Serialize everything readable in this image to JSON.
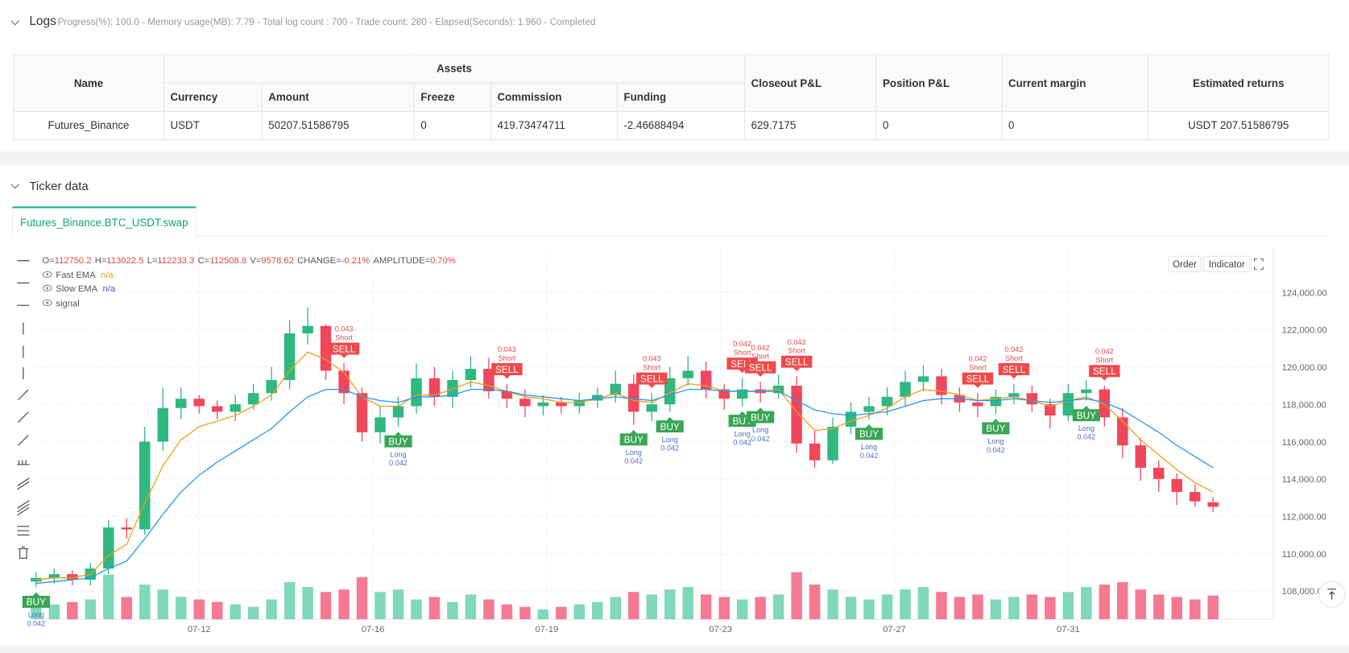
{
  "logs": {
    "title": "Logs",
    "status": "Progress(%): 100.0 - Memory usage(MB): 7.79 - Total log count : 700 - Trade count:  280 - Elapsed(Seconds): 1.960 - Completed"
  },
  "table": {
    "columns": [
      "Name",
      "Assets",
      "Closeout P&L",
      "Position P&L",
      "Current margin",
      "Estimated returns"
    ],
    "asset_columns": [
      "Currency",
      "Amount",
      "Freeze",
      "Commission",
      "Funding"
    ],
    "rows": [
      [
        "Futures_Binance",
        "USDT",
        "50207.51586795",
        "0",
        "419.73474711",
        "-2.46688494",
        "629.7175",
        "0",
        "0",
        "USDT 207.51586795"
      ]
    ]
  },
  "ticker": {
    "title": "Ticker data",
    "tab": "Futures_Binance.BTC_USDT.swap",
    "buttons": [
      "Order",
      "Indicator"
    ]
  },
  "chart_data": {
    "type": "candlestick",
    "info": {
      "labels": [
        "O=",
        "H=",
        "L=",
        "C=",
        "V=",
        "CHANGE=",
        "AMPLITUDE="
      ],
      "change": "-0.21%",
      "amplitude": "0.70%"
    },
    "up_color": "#2fb880",
    "down_color": "#f0475d",
    "volume_up_color": "#7fd9b8",
    "volume_down_color": "#f47a92",
    "xlim": [
      0,
      65
    ],
    "xticks": [
      {
        "value": 9,
        "label": "07-12"
      },
      {
        "value": 18.6,
        "label": "07-16"
      },
      {
        "value": 28.2,
        "label": "07-19"
      },
      {
        "value": 37.8,
        "label": "07-23"
      },
      {
        "value": 47.4,
        "label": "07-27"
      },
      {
        "value": 57,
        "label": "07-31"
      }
    ],
    "ylim": [
      106480,
      126300
    ],
    "yticks": [
      {
        "value": 108000,
        "label": "108,000.00"
      },
      {
        "value": 110000,
        "label": "110,000.00"
      },
      {
        "value": 112000,
        "label": "112,000.00"
      },
      {
        "value": 114000,
        "label": "114,000.00"
      },
      {
        "value": 116000,
        "label": "116,000.00"
      },
      {
        "value": 118000,
        "label": "118,000.00"
      },
      {
        "value": 120000,
        "label": "120,000.00"
      },
      {
        "value": 122000,
        "label": "122,000.00"
      },
      {
        "value": 124000,
        "label": "124,000.00"
      }
    ],
    "grid": true,
    "open": [
      108500,
      108700,
      108900,
      108600,
      109200,
      111400,
      111300,
      116000,
      117800,
      118300,
      117900,
      117600,
      118000,
      118600,
      119300,
      121800,
      122200,
      119800,
      118600,
      116500,
      117300,
      117900,
      119400,
      118400,
      119300,
      119900,
      118700,
      118300,
      117900,
      118100,
      117900,
      118200,
      118500,
      119100,
      117600,
      118000,
      119400,
      119800,
      118800,
      118300,
      118800,
      118600,
      119000,
      115900,
      115000,
      116800,
      117600,
      117900,
      118400,
      119200,
      119500,
      118500,
      118100,
      117900,
      118400,
      118600,
      118000,
      117400,
      118600,
      118800,
      117300,
      115800,
      114600,
      114000,
      113300,
      112750.2
    ],
    "high": [
      109000,
      109200,
      109100,
      109500,
      111800,
      111900,
      116800,
      118900,
      118900,
      118500,
      118200,
      118500,
      119100,
      120000,
      122500,
      123200,
      122300,
      120200,
      118900,
      117900,
      118400,
      120200,
      120000,
      119800,
      120600,
      120500,
      119100,
      118800,
      118500,
      118400,
      118600,
      118900,
      119800,
      119600,
      118600,
      120000,
      120600,
      120300,
      119100,
      119400,
      119200,
      119600,
      119500,
      116600,
      117300,
      118100,
      118400,
      118900,
      119800,
      120100,
      119900,
      118900,
      118600,
      118800,
      119100,
      119000,
      118300,
      119100,
      119300,
      119000,
      117800,
      116200,
      115000,
      114300,
      113700,
      113022.5
    ],
    "low": [
      108200,
      108400,
      108300,
      108300,
      108900,
      110800,
      111000,
      115500,
      117200,
      117500,
      117200,
      117100,
      117700,
      118200,
      118800,
      121200,
      119300,
      118000,
      116000,
      115900,
      116800,
      117500,
      117900,
      117800,
      118900,
      118300,
      117800,
      117300,
      117400,
      117500,
      117500,
      117800,
      118100,
      116900,
      117100,
      117600,
      119000,
      118300,
      117700,
      117900,
      118100,
      118300,
      115400,
      114600,
      114800,
      116400,
      117200,
      117400,
      117900,
      118700,
      118000,
      117600,
      117300,
      117500,
      118000,
      117600,
      116700,
      117100,
      118200,
      116800,
      115100,
      113900,
      113300,
      112600,
      112500,
      112233.3
    ],
    "close": [
      108700,
      108900,
      108600,
      109200,
      111400,
      111300,
      116000,
      117800,
      118300,
      117900,
      117600,
      118000,
      118600,
      119300,
      121800,
      122200,
      119800,
      118600,
      116500,
      117300,
      117900,
      119400,
      118400,
      119300,
      119900,
      118700,
      118300,
      117900,
      118100,
      117900,
      118200,
      118500,
      119100,
      117600,
      118000,
      119400,
      119800,
      118800,
      118300,
      118800,
      118600,
      119000,
      115900,
      115000,
      116800,
      117600,
      117900,
      118400,
      119200,
      119500,
      118500,
      118100,
      117900,
      118400,
      118600,
      118000,
      117400,
      118600,
      118800,
      117300,
      115800,
      114600,
      114000,
      113300,
      112800,
      112508.8
    ],
    "volume": [
      9000,
      6000,
      7000,
      8000,
      18000,
      9000,
      14000,
      12000,
      9000,
      8000,
      7000,
      6000,
      5000,
      8000,
      15000,
      13000,
      11000,
      12000,
      17000,
      11000,
      12000,
      8000,
      9000,
      7000,
      10000,
      8000,
      6000,
      5000,
      4000,
      5000,
      6000,
      7000,
      9000,
      11000,
      10000,
      12000,
      13000,
      10000,
      9000,
      8000,
      9000,
      10000,
      19000,
      14000,
      12000,
      9000,
      8000,
      10000,
      12000,
      13000,
      11000,
      9000,
      10000,
      8000,
      9000,
      10000,
      9000,
      11000,
      13000,
      14000,
      15000,
      12000,
      10000,
      9000,
      8000,
      9578.62
    ],
    "series": [
      {
        "name": "Fast EMA",
        "status": "n/a",
        "color": "#f39c12",
        "values": [
          108600,
          108700,
          108700,
          108900,
          109900,
          110500,
          112700,
          114700,
          116100,
          116800,
          117100,
          117400,
          117900,
          118500,
          119800,
          120800,
          120400,
          119700,
          118400,
          117900,
          117900,
          118500,
          118500,
          118800,
          119200,
          119000,
          118700,
          118400,
          118300,
          118100,
          118100,
          118300,
          118600,
          118200,
          118100,
          118600,
          119100,
          119000,
          118700,
          118700,
          118700,
          118800,
          117600,
          116600,
          116700,
          117100,
          117400,
          117800,
          118400,
          118800,
          118700,
          118500,
          118200,
          118300,
          118400,
          118200,
          117900,
          118200,
          118400,
          118000,
          117100,
          116100,
          115300,
          114500,
          113800,
          113300
        ]
      },
      {
        "name": "Slow EMA",
        "status": "n/a",
        "color": "#2196f3",
        "values": [
          108400,
          108500,
          108600,
          108700,
          109200,
          109600,
          110800,
          112100,
          113300,
          114200,
          114900,
          115500,
          116100,
          116700,
          117600,
          118400,
          118800,
          118800,
          118400,
          118200,
          118100,
          118400,
          118400,
          118500,
          118800,
          118800,
          118700,
          118500,
          118400,
          118300,
          118200,
          118300,
          118400,
          118300,
          118200,
          118500,
          118800,
          118800,
          118700,
          118700,
          118700,
          118700,
          118200,
          117700,
          117500,
          117400,
          117500,
          117600,
          117900,
          118200,
          118300,
          118300,
          118200,
          118200,
          118300,
          118200,
          118100,
          118200,
          118300,
          118100,
          117700,
          117100,
          116500,
          115800,
          115200,
          114600
        ]
      }
    ],
    "signals_name": "signal",
    "signals": [
      {
        "index": 0,
        "label": "BUY",
        "side": "Long",
        "qty": 0.042
      },
      {
        "index": 20,
        "label": "BUY",
        "side": "Long",
        "qty": 0.042
      },
      {
        "index": 33,
        "label": "BUY",
        "side": "Long",
        "qty": 0.042
      },
      {
        "index": 35,
        "label": "BUY",
        "side": "Long",
        "qty": 0.042
      },
      {
        "index": 39,
        "label": "BUY",
        "side": "Long",
        "qty": 0.042
      },
      {
        "index": 40,
        "label": "BUY",
        "side": "Long",
        "qty": 0.042
      },
      {
        "index": 46,
        "label": "BUY",
        "side": "Long",
        "qty": 0.042
      },
      {
        "index": 53,
        "label": "BUY",
        "side": "Long",
        "qty": 0.042
      },
      {
        "index": 58,
        "label": "BUY",
        "side": "Long",
        "qty": 0.042
      },
      {
        "index": 17,
        "label": "SELL",
        "side": "Short",
        "qty": 0.043
      },
      {
        "index": 26,
        "label": "SELL",
        "side": "Short",
        "qty": 0.043
      },
      {
        "index": 34,
        "label": "SELL",
        "side": "Short",
        "qty": 0.043
      },
      {
        "index": 39,
        "label": "SELL",
        "side": "Short",
        "qty": 0.042
      },
      {
        "index": 40,
        "label": "SELL",
        "side": "Short",
        "qty": 0.042
      },
      {
        "index": 42,
        "label": "SELL",
        "side": "Short",
        "qty": 0.043
      },
      {
        "index": 52,
        "label": "SELL",
        "side": "Short",
        "qty": 0.042
      },
      {
        "index": 54,
        "label": "SELL",
        "side": "Short",
        "qty": 0.042
      },
      {
        "index": 59,
        "label": "SELL",
        "side": "Short",
        "qty": 0.042
      }
    ]
  }
}
